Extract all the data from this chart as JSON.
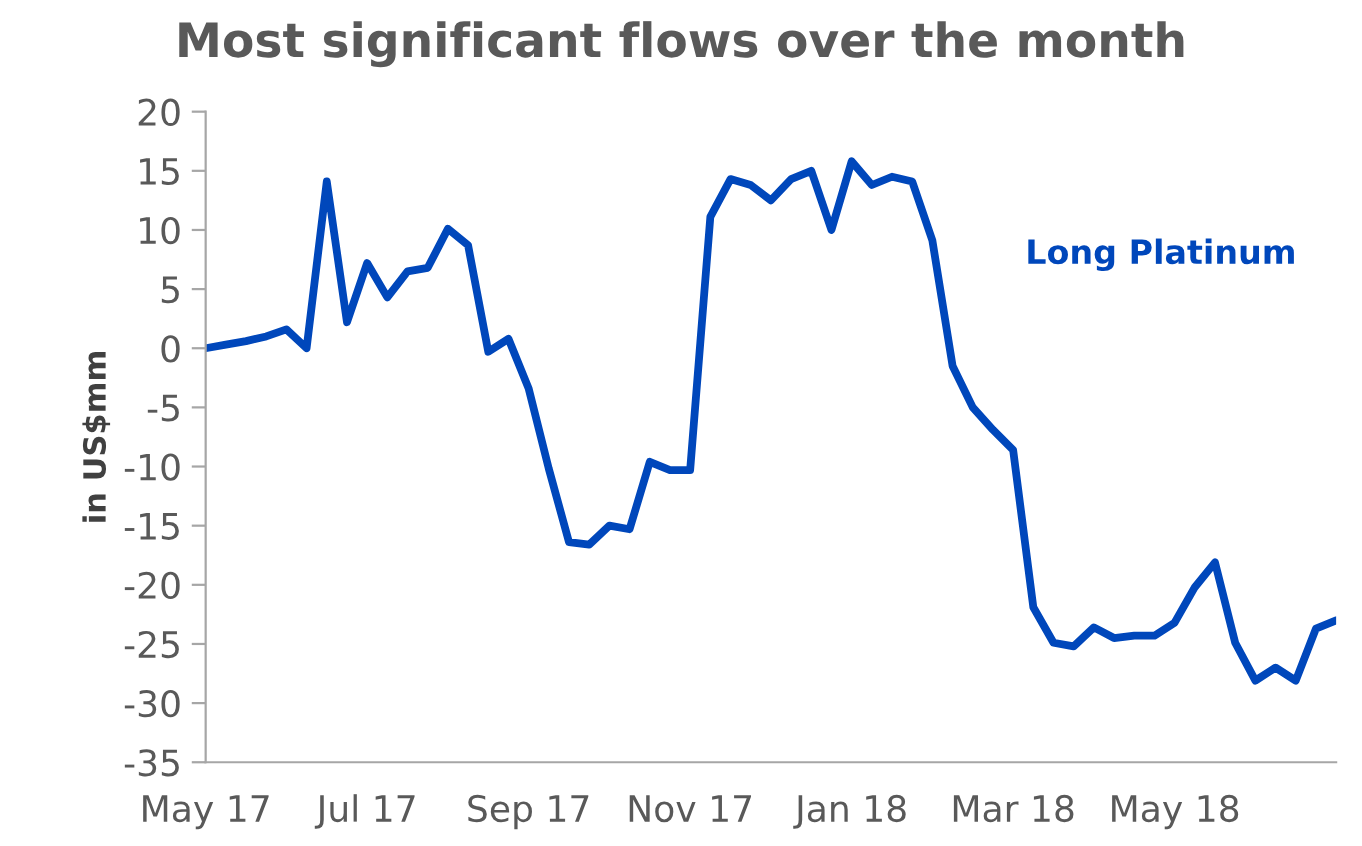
{
  "chart_data": {
    "type": "line",
    "title": "Most significant flows over the month",
    "ylabel": "in US$mm",
    "categories": [
      "May 17",
      null,
      null,
      null,
      null,
      null,
      null,
      null,
      "Jul 17",
      null,
      null,
      null,
      null,
      null,
      null,
      null,
      "Sep 17",
      null,
      null,
      null,
      null,
      null,
      null,
      null,
      "Nov 17",
      null,
      null,
      null,
      null,
      null,
      null,
      null,
      "Jan 18",
      null,
      null,
      null,
      null,
      null,
      null,
      null,
      "Mar 18",
      null,
      null,
      null,
      null,
      null,
      null,
      null,
      "May 18",
      null,
      null,
      null,
      null,
      null,
      null,
      null,
      null
    ],
    "series": [
      {
        "name": "Long Platinum",
        "color": "#0047bb",
        "values": [
          0,
          0.3,
          0.6,
          1,
          1.6,
          0,
          14.1,
          2.2,
          7.2,
          4.3,
          6.5,
          6.8,
          10.1,
          8.7,
          -0.3,
          0.8,
          -3.4,
          -10.2,
          -16.4,
          -16.6,
          -15,
          -15.3,
          -9.6,
          -10.3,
          -10.3,
          11.1,
          14.3,
          13.8,
          12.5,
          14.3,
          15,
          10,
          15.8,
          13.8,
          14.5,
          14.1,
          9.1,
          -1.5,
          -5,
          -6.9,
          -8.6,
          -21.9,
          -24.9,
          -25.2,
          -23.6,
          -24.5,
          -24.3,
          -24.3,
          -23.2,
          -20.2,
          -18.1,
          -24.9,
          -28.1,
          -27,
          -28.1,
          -23.7,
          -23
        ]
      }
    ],
    "ylim": [
      -35,
      20
    ],
    "yticks": [
      -35,
      -30,
      -25,
      -20,
      -15,
      -10,
      -5,
      0,
      5,
      10,
      15,
      20
    ],
    "grid": false,
    "legend": false,
    "marker": "none",
    "line_style": "solid"
  }
}
